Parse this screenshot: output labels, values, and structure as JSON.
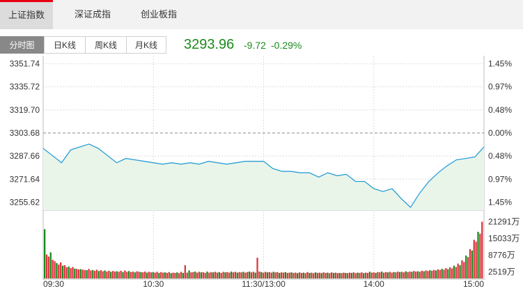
{
  "tabs": [
    {
      "label": "上证指数",
      "active": true
    },
    {
      "label": "深证成指",
      "active": false
    },
    {
      "label": "创业板指",
      "active": false
    }
  ],
  "subtabs": [
    {
      "label": "分时图",
      "active": true
    },
    {
      "label": "日K线",
      "active": false
    },
    {
      "label": "周K线",
      "active": false
    },
    {
      "label": "月K线",
      "active": false
    }
  ],
  "quote": {
    "price": "3293.96",
    "change": "-9.72",
    "change_pct": "-0.29%"
  },
  "colors": {
    "up": "#d9363e",
    "down": "#1a8a1a",
    "line": "#2b9fd6",
    "fill": "#eaf5ea",
    "ref": "#888888",
    "grid": "#dddddd"
  },
  "chart_data": [
    {
      "type": "line",
      "title": "",
      "ylim": [
        3250.0,
        3357.36
      ],
      "reference": 3303.68,
      "y_ticks": [
        "3351.74",
        "3335.72",
        "3319.70",
        "3303.68",
        "3287.66",
        "3271.64",
        "3255.62"
      ],
      "right_ticks": [
        "1.45%",
        "0.97%",
        "0.48%",
        "0.00%",
        "0.48%",
        "0.97%",
        "1.45%"
      ],
      "right_tick_colors": [
        "up",
        "up",
        "up",
        "neutral",
        "down",
        "down",
        "down"
      ],
      "x_ticks": [
        "09:30",
        "10:30",
        "11:30/13:00",
        "14:00",
        "15:00"
      ],
      "series": [
        {
          "x": [
            0,
            5,
            10,
            15,
            20,
            25,
            30,
            35,
            40,
            45,
            50,
            55,
            60,
            65,
            70,
            75,
            80,
            85,
            90,
            95,
            100,
            105,
            110,
            115,
            120,
            125,
            130,
            135,
            140,
            145,
            150,
            155,
            160,
            165,
            170,
            175,
            180,
            185,
            190,
            195,
            200,
            205,
            210,
            215,
            220,
            225,
            230,
            235,
            240
          ],
          "values": [
            3293,
            3288,
            3283,
            3292,
            3294,
            3296,
            3293,
            3288,
            3283,
            3286,
            3285,
            3284,
            3283,
            3282,
            3283,
            3282,
            3283,
            3282,
            3284,
            3283,
            3282,
            3283,
            3284,
            3284,
            3284,
            3279,
            3277,
            3277,
            3276,
            3276,
            3273,
            3276,
            3274,
            3275,
            3270,
            3270,
            3265,
            3263,
            3265,
            3258,
            3252,
            3262,
            3270,
            3276,
            3281,
            3285,
            3286,
            3287,
            3293.96
          ]
        }
      ]
    },
    {
      "type": "bar",
      "title": "",
      "ylim": [
        0,
        23000
      ],
      "y_ticks": [
        "21291万",
        "15033万",
        "8776万",
        "2519万"
      ],
      "tick_values": [
        21291,
        15033,
        8776,
        2519
      ],
      "values": [
        18500,
        9000,
        8200,
        9800,
        7000,
        6500,
        5800,
        5200,
        6000,
        4800,
        5000,
        4200,
        4500,
        3900,
        4300,
        3700,
        3600,
        3400,
        3500,
        3300,
        3200,
        3100,
        3600,
        3000,
        3200,
        2900,
        3300,
        2800,
        3100,
        2700,
        3000,
        2600,
        2900,
        2500,
        2800,
        2600,
        2700,
        2500,
        2900,
        2400,
        3000,
        2500,
        2800,
        2400,
        2600,
        2300,
        2700,
        2500,
        2400,
        2300,
        2600,
        2200,
        2500,
        2300,
        2400,
        2200,
        2500,
        2100,
        2400,
        2200,
        2300,
        2100,
        2400,
        2000,
        2200,
        2100,
        2300,
        2000,
        2500,
        2100,
        5000,
        2200,
        3000,
        2300,
        2400,
        2600,
        2200,
        2500,
        2300,
        2400,
        2100,
        2600,
        2200,
        2400,
        2300,
        2500,
        2200,
        2400,
        2100,
        2500,
        2300,
        2400,
        2200,
        2600,
        2300,
        2500,
        2200,
        2400,
        2300,
        2500,
        2200,
        2400,
        2600,
        2300,
        2500,
        2200,
        7800,
        2600,
        2400,
        2200,
        2500,
        2300,
        2400,
        2200,
        2500,
        2300,
        2400,
        2100,
        2300,
        2200,
        2400,
        2100,
        2200,
        2300,
        2100,
        2200,
        2000,
        2300,
        2100,
        2200,
        2000,
        2400,
        2100,
        2200,
        2000,
        2300,
        2100,
        2200,
        2000,
        2300,
        2100,
        2200,
        2000,
        2300,
        2100,
        2200,
        2000,
        2100,
        2000,
        2200,
        2100,
        2000,
        2200,
        2100,
        2300,
        2000,
        2200,
        2100,
        2300,
        2000,
        2200,
        2100,
        2500,
        2200,
        2300,
        2100,
        2400,
        2300,
        2600,
        2200,
        2400,
        2300,
        2500,
        2200,
        2400,
        2300,
        2600,
        2400,
        2500,
        2300,
        2700,
        2400,
        2600,
        2500,
        2800,
        2600,
        2700,
        2500,
        2900,
        2700,
        3000,
        2800,
        3100,
        2900,
        3200,
        3000,
        3400,
        3200,
        3600,
        3300,
        3900,
        3500,
        4200,
        3800,
        4800,
        4300,
        5600,
        5000,
        6800,
        6200,
        8600,
        8000,
        11000,
        10500,
        14500,
        13800,
        17500,
        16800,
        21291
      ],
      "colors": [
        "up",
        "down"
      ]
    }
  ]
}
